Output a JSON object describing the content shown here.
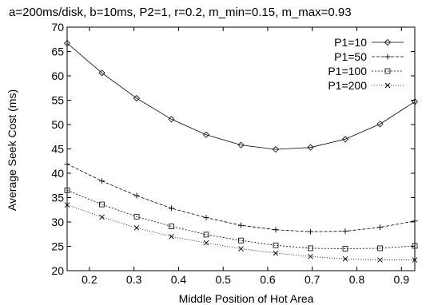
{
  "chart_data": {
    "type": "line",
    "title": "a=200ms/disk, b=10ms, P2=1, r=0.2, m_min=0.15, m_max=0.93",
    "xlabel": "Middle Position of Hot Area",
    "ylabel": "Average Seek Cost (ms)",
    "xlim": [
      0.15,
      0.93
    ],
    "ylim": [
      20,
      70
    ],
    "xticks": [
      "0.2",
      "0.3",
      "0.4",
      "0.5",
      "0.6",
      "0.7",
      "0.8",
      "0.9"
    ],
    "xtick_values": [
      0.2,
      0.3,
      0.4,
      0.5,
      0.6,
      0.7,
      0.8,
      0.9
    ],
    "yticks": [
      "20",
      "25",
      "30",
      "35",
      "40",
      "45",
      "50",
      "55",
      "60",
      "65",
      "70"
    ],
    "ytick_values": [
      20,
      25,
      30,
      35,
      40,
      45,
      50,
      55,
      60,
      65,
      70
    ],
    "grid": false,
    "legend_position": "top-right",
    "x": [
      0.15,
      0.228,
      0.306,
      0.384,
      0.462,
      0.54,
      0.618,
      0.696,
      0.774,
      0.852,
      0.93
    ],
    "series": [
      {
        "name": "P1=10",
        "marker": "diamond",
        "dash": "solid",
        "values": [
          66.7,
          60.6,
          55.4,
          51.1,
          47.9,
          45.8,
          44.9,
          45.3,
          47.0,
          50.1,
          54.7
        ]
      },
      {
        "name": "P1=50",
        "marker": "plus",
        "dash": "dashed",
        "values": [
          41.9,
          38.4,
          35.4,
          32.8,
          30.9,
          29.3,
          28.4,
          28.0,
          28.1,
          28.9,
          30.2
        ]
      },
      {
        "name": "P1=100",
        "marker": "square",
        "dash": "dotted",
        "values": [
          36.5,
          33.6,
          31.1,
          29.1,
          27.4,
          26.2,
          25.2,
          24.6,
          24.5,
          24.6,
          25.1
        ]
      },
      {
        "name": "P1=200",
        "marker": "x",
        "dash": "finedot",
        "values": [
          33.5,
          31.0,
          28.8,
          27.0,
          25.7,
          24.5,
          23.6,
          22.9,
          22.4,
          22.2,
          22.2
        ]
      }
    ]
  }
}
